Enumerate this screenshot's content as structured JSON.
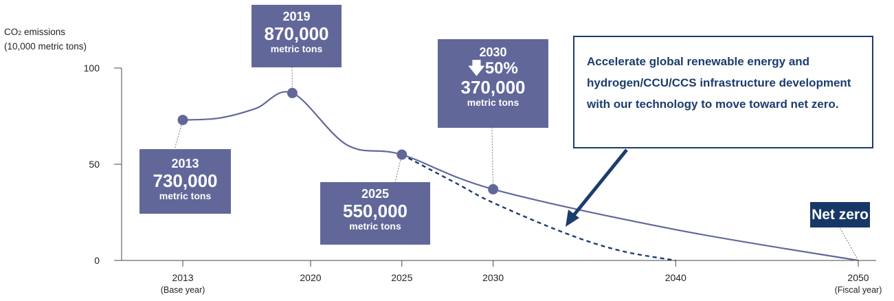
{
  "chart_data": {
    "type": "line",
    "ylabel_main": "CO",
    "ylabel_sub": "2",
    "ylabel_rest": " emissions",
    "yunit": "(10,000 metric tons)",
    "ylim": [
      0,
      100
    ],
    "yticks": [
      0,
      50,
      100
    ],
    "x_ticks": [
      {
        "value": 2013,
        "label": "2013",
        "sub": "(Base year)"
      },
      {
        "value": 2020,
        "label": "2020",
        "sub": ""
      },
      {
        "value": 2025,
        "label": "2025",
        "sub": ""
      },
      {
        "value": 2030,
        "label": "2030",
        "sub": ""
      },
      {
        "value": 2040,
        "label": "2040",
        "sub": ""
      },
      {
        "value": 2050,
        "label": "2050",
        "sub": "(Fiscal year)"
      }
    ],
    "series": [
      {
        "style": "solid",
        "color": "#62679a",
        "x": [
          2013,
          2015,
          2017,
          2019,
          2022,
          2025,
          2030,
          2040,
          2050
        ],
        "values": [
          73,
          74,
          79,
          87,
          60,
          55,
          37,
          16,
          0
        ]
      },
      {
        "style": "dashed",
        "color": "#1b3d6d",
        "x": [
          2025,
          2028,
          2030,
          2034,
          2037,
          2040
        ],
        "values": [
          55,
          40,
          30,
          14,
          5,
          0
        ]
      }
    ],
    "markers": [
      {
        "x": 2013,
        "y": 73
      },
      {
        "x": 2019,
        "y": 87
      },
      {
        "x": 2025,
        "y": 55
      },
      {
        "x": 2030,
        "y": 37
      }
    ],
    "annotations": [
      {
        "year": "2013",
        "value": "730,000",
        "unit": "metric tons"
      },
      {
        "year": "2019",
        "value": "870,000",
        "unit": "metric tons"
      },
      {
        "year": "2025",
        "value": "550,000",
        "unit": "metric tons"
      },
      {
        "year": "2030",
        "change": "50%",
        "value": "370,000",
        "unit": "metric tons"
      }
    ],
    "callout": "Accelerate global renewable energy and hydrogen/CCU/CCS infrastructure development with our technology to move toward net zero.",
    "endpoint_label": "Net zero"
  },
  "colors": {
    "box": "#62679a",
    "navy": "#1b3d6d",
    "axis": "#444444"
  },
  "icons": {
    "reduction": "down-arrow-icon"
  }
}
